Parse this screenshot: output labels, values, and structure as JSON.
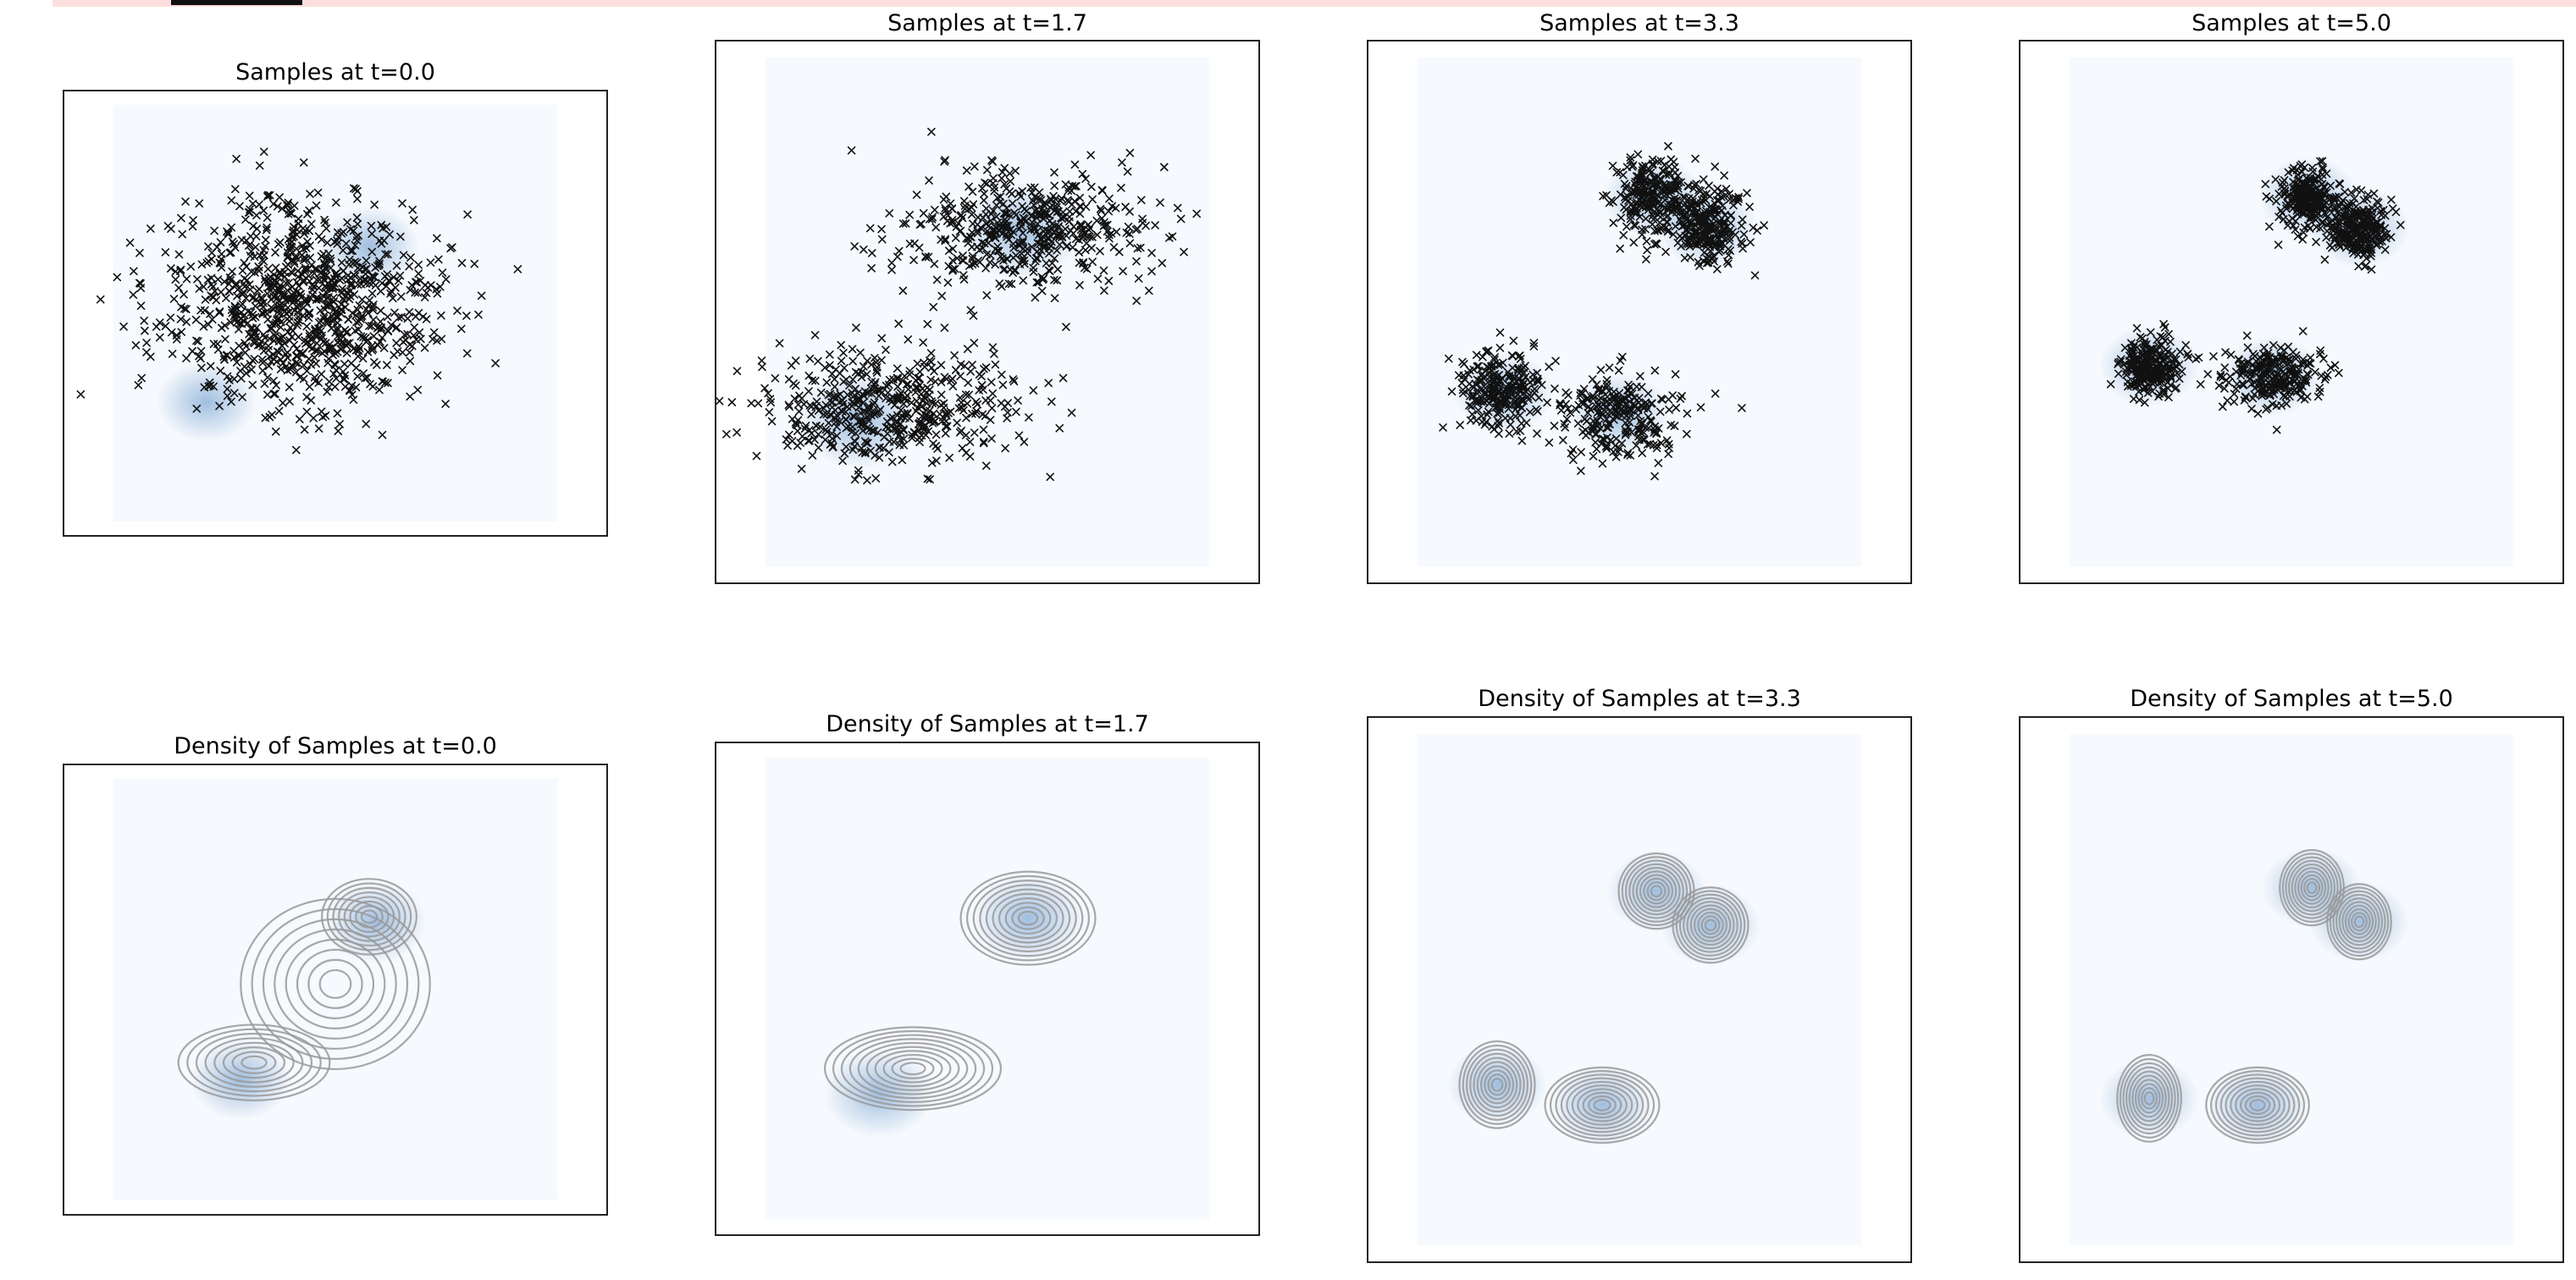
{
  "figure": {
    "panels": [
      {
        "id": "samples-0",
        "kind": "samples",
        "title": "Samples at t=0.0"
      },
      {
        "id": "samples-1",
        "kind": "samples",
        "title": "Samples at t=1.7"
      },
      {
        "id": "samples-2",
        "kind": "samples",
        "title": "Samples at t=3.3"
      },
      {
        "id": "samples-3",
        "kind": "samples",
        "title": "Samples at t=5.0"
      },
      {
        "id": "density-0",
        "kind": "density",
        "title": "Density of Samples at t=0.0"
      },
      {
        "id": "density-1",
        "kind": "density",
        "title": "Density of Samples at t=1.7"
      },
      {
        "id": "density-2",
        "kind": "density",
        "title": "Density of Samples at t=3.3"
      },
      {
        "id": "density-3",
        "kind": "density",
        "title": "Density of Samples at t=5.0"
      }
    ]
  },
  "colors": {
    "marker": "#111111",
    "density_fill": "#5b8fc7",
    "background_fill": "#f6f9fd",
    "contour": "#999999",
    "frame": "#222222"
  },
  "chart_data": [
    {
      "type": "scatter",
      "title": "Samples at t=0.0",
      "t": 0.0,
      "marker": "x",
      "n_points_approx": 1000,
      "grid": false,
      "axes_visible": false,
      "xlim": [
        -4,
        4
      ],
      "ylim": [
        -4,
        4
      ],
      "clusters": [
        {
          "center": [
            -0.5,
            0.2
          ],
          "spread": [
            1.0,
            0.9
          ],
          "weight": 1.0
        }
      ],
      "background_density": [
        {
          "center": [
            0.5,
            1.2
          ],
          "weight": 0.5
        },
        {
          "center": [
            -1.9,
            -1.6
          ],
          "weight": 0.5
        }
      ]
    },
    {
      "type": "scatter",
      "title": "Samples at t=1.7",
      "t": 1.7,
      "marker": "x",
      "n_points_approx": 1000,
      "grid": false,
      "axes_visible": false,
      "xlim": [
        -4,
        4
      ],
      "ylim": [
        -4,
        4
      ],
      "clusters": [
        {
          "center": [
            0.5,
            1.2
          ],
          "spread": [
            0.9,
            0.45
          ],
          "weight": 0.5
        },
        {
          "center": [
            -1.5,
            -1.4
          ],
          "spread": [
            0.95,
            0.4
          ],
          "weight": 0.5
        }
      ],
      "background_density": [
        {
          "center": [
            0.5,
            1.2
          ],
          "weight": 0.5
        },
        {
          "center": [
            -1.9,
            -1.6
          ],
          "weight": 0.5
        }
      ]
    },
    {
      "type": "scatter",
      "title": "Samples at t=3.3",
      "t": 3.3,
      "marker": "x",
      "n_points_approx": 1000,
      "grid": false,
      "axes_visible": false,
      "xlim": [
        -4,
        4
      ],
      "ylim": [
        -4,
        4
      ],
      "clusters": [
        {
          "center": [
            0.2,
            1.7
          ],
          "spread": [
            0.3,
            0.3
          ],
          "weight": 0.25
        },
        {
          "center": [
            1.0,
            1.25
          ],
          "spread": [
            0.3,
            0.3
          ],
          "weight": 0.25
        },
        {
          "center": [
            -2.0,
            -1.2
          ],
          "spread": [
            0.3,
            0.3
          ],
          "weight": 0.25
        },
        {
          "center": [
            -0.3,
            -1.5
          ],
          "spread": [
            0.45,
            0.3
          ],
          "weight": 0.25
        }
      ],
      "background_density": [
        {
          "center": [
            0.2,
            1.7
          ],
          "weight": 0.25
        },
        {
          "center": [
            1.0,
            1.25
          ],
          "weight": 0.25
        },
        {
          "center": [
            -2.0,
            -1.2
          ],
          "weight": 0.25
        },
        {
          "center": [
            -0.3,
            -1.5
          ],
          "weight": 0.25
        }
      ]
    },
    {
      "type": "scatter",
      "title": "Samples at t=5.0",
      "t": 5.0,
      "marker": "x",
      "n_points_approx": 1000,
      "grid": false,
      "axes_visible": false,
      "xlim": [
        -4,
        4
      ],
      "ylim": [
        -4,
        4
      ],
      "clusters": [
        {
          "center": [
            0.25,
            1.7
          ],
          "spread": [
            0.22,
            0.22
          ],
          "weight": 0.25
        },
        {
          "center": [
            1.0,
            1.25
          ],
          "spread": [
            0.22,
            0.22
          ],
          "weight": 0.25
        },
        {
          "center": [
            -2.1,
            -0.8
          ],
          "spread": [
            0.22,
            0.22
          ],
          "weight": 0.25
        },
        {
          "center": [
            -0.3,
            -0.95
          ],
          "spread": [
            0.38,
            0.22
          ],
          "weight": 0.25
        }
      ],
      "background_density": [
        {
          "center": [
            0.25,
            1.7
          ],
          "weight": 0.25
        },
        {
          "center": [
            1.0,
            1.25
          ],
          "weight": 0.25
        },
        {
          "center": [
            -2.1,
            -0.8
          ],
          "weight": 0.25
        },
        {
          "center": [
            -0.3,
            -0.95
          ],
          "weight": 0.25
        }
      ]
    },
    {
      "type": "heatmap",
      "title": "Density of Samples at t=0.0",
      "t": 0.0,
      "contours": true,
      "contour_levels": 8,
      "grid": false,
      "axes_visible": false,
      "xlim": [
        -4,
        4
      ],
      "ylim": [
        -4,
        4
      ],
      "kde_components": [
        {
          "center": [
            0.0,
            0.1
          ],
          "spread": [
            1.0,
            0.9
          ],
          "weight": 1.0
        },
        {
          "center": [
            0.5,
            1.3
          ],
          "spread": [
            0.5,
            0.4
          ],
          "weight": 0.35
        },
        {
          "center": [
            -1.2,
            -1.3
          ],
          "spread": [
            0.8,
            0.4
          ],
          "weight": 0.35
        }
      ],
      "background_density": [
        {
          "center": [
            0.6,
            1.2
          ],
          "weight": 0.5
        },
        {
          "center": [
            -1.4,
            -1.6
          ],
          "weight": 0.5
        }
      ]
    },
    {
      "type": "heatmap",
      "title": "Density of Samples at t=1.7",
      "t": 1.7,
      "contours": true,
      "contour_levels": 10,
      "grid": false,
      "axes_visible": false,
      "xlim": [
        -4,
        4
      ],
      "ylim": [
        -4,
        4
      ],
      "kde_components": [
        {
          "center": [
            0.6,
            1.15
          ],
          "spread": [
            0.65,
            0.45
          ],
          "weight": 0.5
        },
        {
          "center": [
            -1.1,
            -1.3
          ],
          "spread": [
            0.85,
            0.4
          ],
          "weight": 0.5
        }
      ],
      "background_density": [
        {
          "center": [
            0.6,
            1.15
          ],
          "weight": 0.5
        },
        {
          "center": [
            -1.6,
            -1.7
          ],
          "weight": 0.5
        }
      ]
    },
    {
      "type": "heatmap",
      "title": "Density of Samples at t=3.3",
      "t": 3.3,
      "contours": true,
      "contour_levels": 10,
      "grid": false,
      "axes_visible": false,
      "xlim": [
        -4,
        4
      ],
      "ylim": [
        -4,
        4
      ],
      "kde_components": [
        {
          "center": [
            0.25,
            1.45
          ],
          "spread": [
            0.33,
            0.33
          ],
          "weight": 0.25
        },
        {
          "center": [
            1.05,
            0.95
          ],
          "spread": [
            0.33,
            0.33
          ],
          "weight": 0.25
        },
        {
          "center": [
            -2.1,
            -1.4
          ],
          "spread": [
            0.33,
            0.38
          ],
          "weight": 0.25
        },
        {
          "center": [
            -0.55,
            -1.7
          ],
          "spread": [
            0.5,
            0.33
          ],
          "weight": 0.25
        }
      ],
      "background_density": [
        {
          "center": [
            0.25,
            1.45
          ],
          "weight": 0.25
        },
        {
          "center": [
            1.05,
            0.95
          ],
          "weight": 0.25
        },
        {
          "center": [
            -2.1,
            -1.4
          ],
          "weight": 0.25
        },
        {
          "center": [
            -0.55,
            -1.7
          ],
          "weight": 0.25
        }
      ]
    },
    {
      "type": "heatmap",
      "title": "Density of Samples at t=5.0",
      "t": 5.0,
      "contours": true,
      "contour_levels": 10,
      "grid": false,
      "axes_visible": false,
      "xlim": [
        -4,
        4
      ],
      "ylim": [
        -4,
        4
      ],
      "kde_components": [
        {
          "center": [
            0.3,
            1.5
          ],
          "spread": [
            0.28,
            0.33
          ],
          "weight": 0.25
        },
        {
          "center": [
            1.0,
            1.0
          ],
          "spread": [
            0.28,
            0.33
          ],
          "weight": 0.25
        },
        {
          "center": [
            -2.1,
            -1.6
          ],
          "spread": [
            0.28,
            0.38
          ],
          "weight": 0.25
        },
        {
          "center": [
            -0.5,
            -1.7
          ],
          "spread": [
            0.45,
            0.33
          ],
          "weight": 0.25
        }
      ],
      "background_density": [
        {
          "center": [
            0.3,
            1.5
          ],
          "weight": 0.25
        },
        {
          "center": [
            1.0,
            1.0
          ],
          "weight": 0.25
        },
        {
          "center": [
            -2.1,
            -1.6
          ],
          "weight": 0.25
        },
        {
          "center": [
            -0.5,
            -1.7
          ],
          "weight": 0.25
        }
      ]
    }
  ]
}
